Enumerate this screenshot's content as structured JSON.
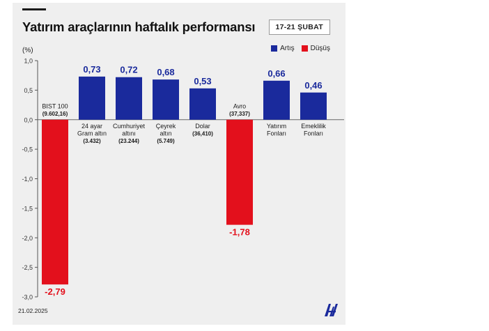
{
  "header": {
    "title": "Yatırım araçlarının haftalık performansı",
    "date_range": "17-21 ŞUBAT"
  },
  "legend": {
    "increase_label": "Artış",
    "decrease_label": "Düşüş"
  },
  "colors": {
    "increase": "#1a2a9c",
    "decrease": "#e3101c",
    "background": "#efefef"
  },
  "footer": {
    "date": "21.02.2025",
    "logo": "aa-logo-icon"
  },
  "chart_data": {
    "type": "bar",
    "ylabel": "(%)",
    "ylim": [
      -3.0,
      1.0
    ],
    "yticks": [
      "1,0",
      "0,5",
      "0,0",
      "-0,5",
      "-1,0",
      "-1,5",
      "-2,0",
      "-2,5",
      "-3,0"
    ],
    "ytick_values": [
      1.0,
      0.5,
      0.0,
      -0.5,
      -1.0,
      -1.5,
      -2.0,
      -2.5,
      -3.0
    ],
    "grid": false,
    "legend_position": "top-right",
    "categories": [
      {
        "label": [
          "BIST 100",
          "(9.602,16)"
        ],
        "value": -2.79,
        "value_label": "-2,79"
      },
      {
        "label": [
          "24 ayar",
          "Gram altın",
          "(3.432)"
        ],
        "value": 0.73,
        "value_label": "0,73"
      },
      {
        "label": [
          "Cumhuriyet",
          "altını",
          "(23.244)"
        ],
        "value": 0.72,
        "value_label": "0,72"
      },
      {
        "label": [
          "Çeyrek",
          "altın",
          "(5.749)"
        ],
        "value": 0.68,
        "value_label": "0,68"
      },
      {
        "label": [
          "Dolar",
          "(36,410)"
        ],
        "value": 0.53,
        "value_label": "0,53"
      },
      {
        "label": [
          "Avro",
          "(37,337)"
        ],
        "value": -1.78,
        "value_label": "-1,78"
      },
      {
        "label": [
          "Yatırım",
          "Fonları"
        ],
        "value": 0.66,
        "value_label": "0,66"
      },
      {
        "label": [
          "Emeklilik",
          "Fonları"
        ],
        "value": 0.46,
        "value_label": "0,46"
      }
    ]
  }
}
